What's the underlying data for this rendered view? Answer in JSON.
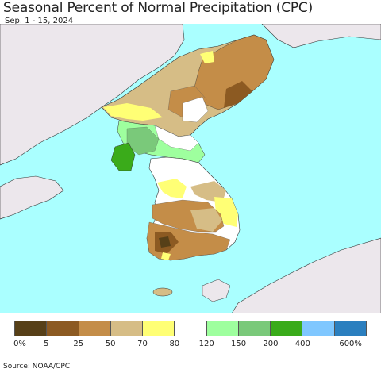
{
  "header": {
    "title": "Seasonal Percent of Normal Precipitation (CPC)",
    "subtitle": "Sep. 1 - 15, 2024"
  },
  "colors": {
    "ocean": "#aaffff",
    "land_outside": "#ece7ec",
    "border": "#333333"
  },
  "legend": {
    "swatches": [
      {
        "color": "#574018"
      },
      {
        "color": "#8c5a22"
      },
      {
        "color": "#c48d48"
      },
      {
        "color": "#d6bd86"
      },
      {
        "color": "#ffff75"
      },
      {
        "color": "#ffffff"
      },
      {
        "color": "#9eff9e"
      },
      {
        "color": "#7ac97a"
      },
      {
        "color": "#3aab1a"
      },
      {
        "color": "#7fc7ff"
      },
      {
        "color": "#2b7fbf"
      }
    ],
    "ticks": [
      "0%",
      "5",
      "25",
      "50",
      "70",
      "80",
      "120",
      "150",
      "200",
      "400",
      "600%"
    ]
  },
  "footer": {
    "source": "Source: NOAA/CPC"
  }
}
